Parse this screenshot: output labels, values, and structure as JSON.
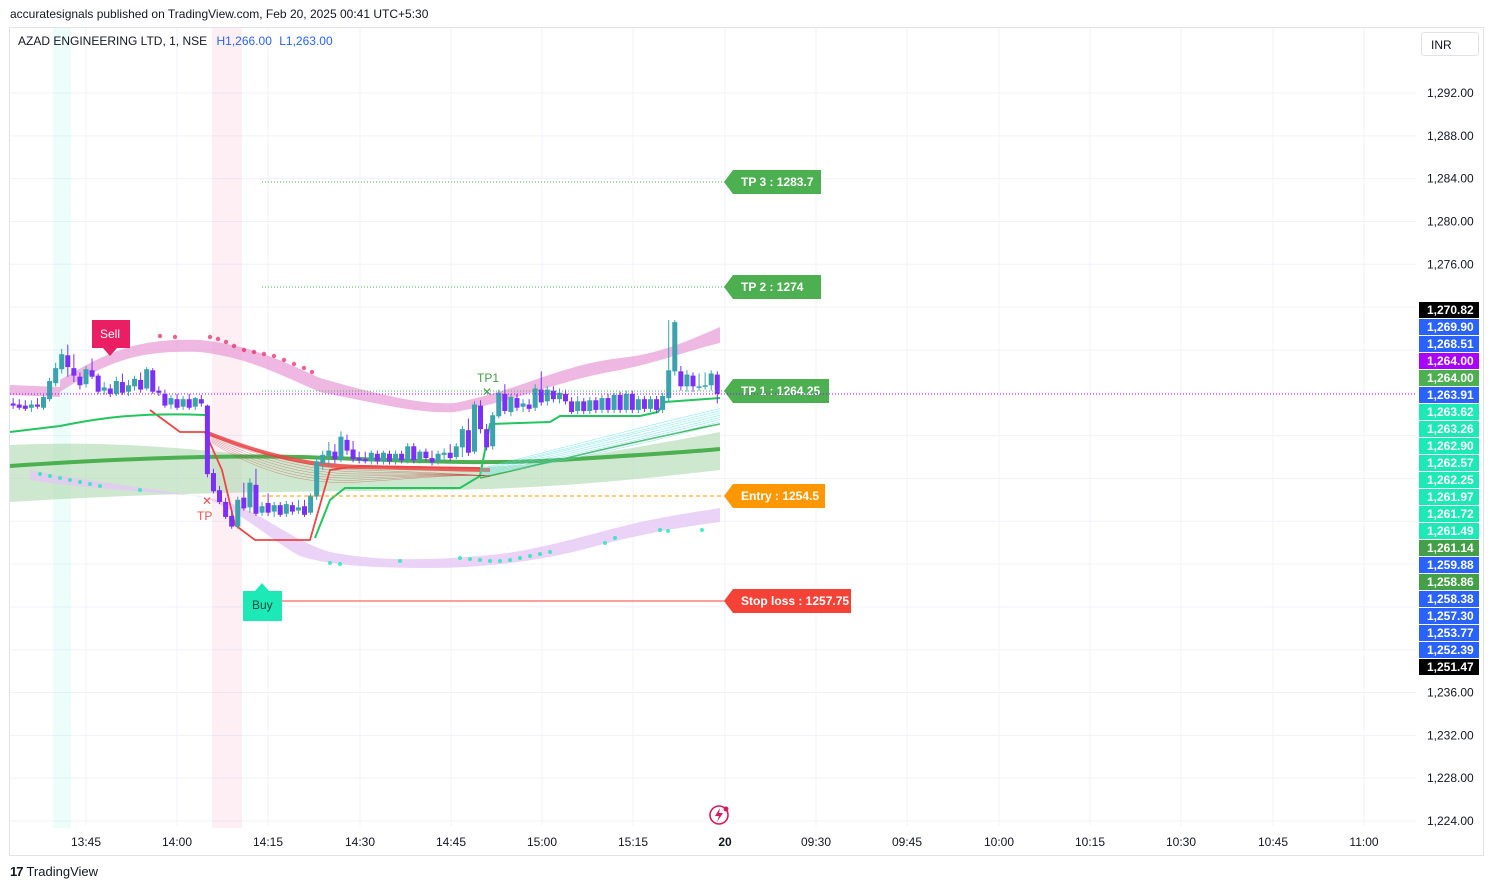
{
  "header": {
    "published_text": "accuratesignals published on TradingView.com, Feb 20, 2025 00:41 UTC+5:30"
  },
  "legend": {
    "symbol_text": "AZAD ENGINEERING LTD, 1, NSE",
    "high_text": "H1,266.00",
    "low_text": "L1,263.00"
  },
  "currency": "INR",
  "footer": {
    "brand": "TradingView"
  },
  "colors": {
    "up": "#26a69a",
    "up_highlight": "#3aa3ad",
    "down": "#7b2ff7",
    "green_line": "#22c55e",
    "red_line": "#ef4444",
    "pink_band": "#e8a0d8",
    "violet_band": "#e6c7f5",
    "green_cloud": "#a5d6a7",
    "tp_label": "#4caf50",
    "entry_label": "#ff9800",
    "stop_label": "#f44336",
    "buy_label": "#1de9b6",
    "sell_label": "#e91e63"
  },
  "chart_data": {
    "type": "candlestick",
    "title": "",
    "ylim": [
      1222,
      1296
    ],
    "y_ticks": [
      "1,292.00",
      "1,288.00",
      "1,284.00",
      "1,280.00",
      "1,276.00",
      "1,236.00",
      "1,232.00",
      "1,228.00",
      "1,224.00"
    ],
    "x_ticks": [
      "13:45",
      "14:00",
      "14:15",
      "14:30",
      "14:45",
      "15:00",
      "15:15",
      "20",
      "09:30",
      "09:45",
      "10:00",
      "10:15",
      "10:30",
      "10:45",
      "11:00"
    ],
    "levels": [
      {
        "name": "TP 3",
        "label": "TP 3 : 1283.7",
        "y": 1283.7
      },
      {
        "name": "TP 2",
        "label": "TP 2 : 1274",
        "y": 1274
      },
      {
        "name": "TP 1",
        "label": "TP 1 : 1264.25",
        "y": 1264.25
      },
      {
        "name": "Entry",
        "label": "Entry : 1254.5",
        "y": 1254.5
      },
      {
        "name": "Stop loss",
        "label": "Stop loss : 1257.75",
        "y": 1257.75
      }
    ],
    "signals": [
      {
        "label": "Sell",
        "x": "13:50"
      },
      {
        "label": "Buy",
        "x": "14:12"
      },
      {
        "label": "TP1",
        "x": "14:50"
      },
      {
        "label": "TP",
        "x": "14:05"
      }
    ],
    "price_scale_labels": [
      {
        "text": "1,270.82",
        "color": "#000000"
      },
      {
        "text": "1,269.90",
        "color": "#2962ff"
      },
      {
        "text": "1,268.51",
        "color": "#2962ff"
      },
      {
        "text": "1,264.00",
        "color": "#aa00ff"
      },
      {
        "text": "1,264.00",
        "color": "#4caf50"
      },
      {
        "text": "1,263.91",
        "color": "#2962ff"
      },
      {
        "text": "1,263.62",
        "color": "#1de9b6"
      },
      {
        "text": "1,263.26",
        "color": "#1de9b6"
      },
      {
        "text": "1,262.90",
        "color": "#1de9b6"
      },
      {
        "text": "1,262.57",
        "color": "#1de9b6"
      },
      {
        "text": "1,262.25",
        "color": "#1de9b6"
      },
      {
        "text": "1,261.97",
        "color": "#1de9b6"
      },
      {
        "text": "1,261.72",
        "color": "#1de9b6"
      },
      {
        "text": "1,261.49",
        "color": "#1de9b6"
      },
      {
        "text": "1,261.14",
        "color": "#43a047"
      },
      {
        "text": "1,259.88",
        "color": "#2962ff"
      },
      {
        "text": "1,258.86",
        "color": "#43a047"
      },
      {
        "text": "1,258.38",
        "color": "#2962ff"
      },
      {
        "text": "1,257.30",
        "color": "#2962ff"
      },
      {
        "text": "1,253.77",
        "color": "#2962ff"
      },
      {
        "text": "1,252.39",
        "color": "#2962ff"
      },
      {
        "text": "1,251.47",
        "color": "#000000"
      }
    ],
    "candles": [
      {
        "x": "13:33",
        "o": 1263.0,
        "h": 1263.5,
        "l": 1262.5,
        "c": 1262.8
      },
      {
        "x": "13:34",
        "o": 1262.9,
        "h": 1263.4,
        "l": 1262.4,
        "c": 1262.6
      },
      {
        "x": "13:35",
        "o": 1262.8,
        "h": 1263.3,
        "l": 1262.3,
        "c": 1262.5
      },
      {
        "x": "13:36",
        "o": 1262.6,
        "h": 1263.3,
        "l": 1262.2,
        "c": 1262.9
      },
      {
        "x": "13:37",
        "o": 1262.9,
        "h": 1263.5,
        "l": 1262.5,
        "c": 1262.7
      },
      {
        "x": "13:38",
        "o": 1262.6,
        "h": 1263.8,
        "l": 1262.4,
        "c": 1263.6
      },
      {
        "x": "13:39",
        "o": 1263.4,
        "h": 1265.4,
        "l": 1263.2,
        "c": 1265.1
      },
      {
        "x": "13:40",
        "o": 1264.9,
        "h": 1266.8,
        "l": 1264.6,
        "c": 1266.3
      },
      {
        "x": "13:41",
        "o": 1266.2,
        "h": 1268.1,
        "l": 1265.8,
        "c": 1267.6
      },
      {
        "x": "13:42",
        "o": 1267.5,
        "h": 1268.5,
        "l": 1265.5,
        "c": 1266.4
      },
      {
        "x": "13:43",
        "o": 1266.3,
        "h": 1267.6,
        "l": 1265.0,
        "c": 1265.6
      },
      {
        "x": "13:44",
        "o": 1265.5,
        "h": 1265.9,
        "l": 1264.3,
        "c": 1264.7
      },
      {
        "x": "13:45",
        "o": 1264.8,
        "h": 1266.5,
        "l": 1264.5,
        "c": 1266.2
      },
      {
        "x": "13:46",
        "o": 1266.1,
        "h": 1267.2,
        "l": 1265.3,
        "c": 1265.5
      },
      {
        "x": "13:47",
        "o": 1265.6,
        "h": 1265.8,
        "l": 1263.9,
        "c": 1264.1
      },
      {
        "x": "13:48",
        "o": 1264.2,
        "h": 1265.0,
        "l": 1263.8,
        "c": 1264.5
      },
      {
        "x": "13:49",
        "o": 1264.4,
        "h": 1264.8,
        "l": 1263.6,
        "c": 1263.9
      },
      {
        "x": "13:50",
        "o": 1263.9,
        "h": 1265.5,
        "l": 1263.7,
        "c": 1265.1
      },
      {
        "x": "13:51",
        "o": 1265.0,
        "h": 1265.8,
        "l": 1263.8,
        "c": 1264.0
      },
      {
        "x": "13:52",
        "o": 1264.1,
        "h": 1265.2,
        "l": 1263.7,
        "c": 1264.7
      },
      {
        "x": "13:53",
        "o": 1264.6,
        "h": 1265.6,
        "l": 1264.2,
        "c": 1265.3
      },
      {
        "x": "13:54",
        "o": 1265.2,
        "h": 1265.9,
        "l": 1264.0,
        "c": 1264.3
      },
      {
        "x": "13:55",
        "o": 1264.4,
        "h": 1266.4,
        "l": 1264.2,
        "c": 1266.2
      },
      {
        "x": "13:56",
        "o": 1266.1,
        "h": 1266.3,
        "l": 1263.9,
        "c": 1264.1
      },
      {
        "x": "13:57",
        "o": 1264.2,
        "h": 1264.6,
        "l": 1263.7,
        "c": 1264.0
      },
      {
        "x": "13:58",
        "o": 1263.9,
        "h": 1264.3,
        "l": 1262.6,
        "c": 1262.8
      },
      {
        "x": "13:59",
        "o": 1262.9,
        "h": 1263.8,
        "l": 1262.5,
        "c": 1263.5
      },
      {
        "x": "14:00",
        "o": 1263.4,
        "h": 1263.9,
        "l": 1262.4,
        "c": 1262.6
      },
      {
        "x": "14:01",
        "o": 1262.7,
        "h": 1263.7,
        "l": 1262.4,
        "c": 1263.4
      },
      {
        "x": "14:02",
        "o": 1263.4,
        "h": 1263.9,
        "l": 1262.4,
        "c": 1262.6
      },
      {
        "x": "14:03",
        "o": 1262.7,
        "h": 1263.6,
        "l": 1262.4,
        "c": 1263.5
      },
      {
        "x": "14:04",
        "o": 1263.4,
        "h": 1263.8,
        "l": 1262.7,
        "c": 1263.0
      },
      {
        "x": "14:05",
        "o": 1262.8,
        "h": 1262.9,
        "l": 1256.1,
        "c": 1256.4
      },
      {
        "x": "14:06",
        "o": 1256.5,
        "h": 1256.9,
        "l": 1254.6,
        "c": 1254.8
      },
      {
        "x": "14:07",
        "o": 1254.9,
        "h": 1255.3,
        "l": 1253.6,
        "c": 1253.8
      },
      {
        "x": "14:08",
        "o": 1253.8,
        "h": 1254.2,
        "l": 1252.2,
        "c": 1252.4
      },
      {
        "x": "14:09",
        "o": 1252.5,
        "h": 1253.0,
        "l": 1251.3,
        "c": 1251.5
      },
      {
        "x": "14:10",
        "o": 1251.5,
        "h": 1254.3,
        "l": 1251.3,
        "c": 1254.0
      },
      {
        "x": "14:11",
        "o": 1254.2,
        "h": 1255.6,
        "l": 1253.0,
        "c": 1253.2
      },
      {
        "x": "14:12",
        "o": 1253.3,
        "h": 1256.0,
        "l": 1252.8,
        "c": 1255.6
      },
      {
        "x": "14:13",
        "o": 1255.4,
        "h": 1256.9,
        "l": 1252.5,
        "c": 1252.7
      },
      {
        "x": "14:14",
        "o": 1252.8,
        "h": 1253.8,
        "l": 1252.5,
        "c": 1253.4
      },
      {
        "x": "14:15",
        "o": 1253.7,
        "h": 1254.6,
        "l": 1252.5,
        "c": 1252.8
      },
      {
        "x": "14:16",
        "o": 1252.9,
        "h": 1253.8,
        "l": 1252.4,
        "c": 1253.5
      },
      {
        "x": "14:17",
        "o": 1253.5,
        "h": 1253.8,
        "l": 1252.4,
        "c": 1252.6
      },
      {
        "x": "14:18",
        "o": 1252.7,
        "h": 1253.9,
        "l": 1252.4,
        "c": 1253.6
      },
      {
        "x": "14:19",
        "o": 1253.5,
        "h": 1253.8,
        "l": 1252.6,
        "c": 1252.9
      },
      {
        "x": "14:20",
        "o": 1253.0,
        "h": 1254.0,
        "l": 1252.7,
        "c": 1253.3
      },
      {
        "x": "14:21",
        "o": 1253.4,
        "h": 1254.0,
        "l": 1252.4,
        "c": 1252.6
      },
      {
        "x": "14:22",
        "o": 1252.8,
        "h": 1254.6,
        "l": 1252.6,
        "c": 1254.4
      },
      {
        "x": "14:23",
        "o": 1254.3,
        "h": 1257.9,
        "l": 1254.0,
        "c": 1257.6
      },
      {
        "x": "14:24",
        "o": 1257.4,
        "h": 1258.6,
        "l": 1256.8,
        "c": 1258.2
      },
      {
        "x": "14:25",
        "o": 1258.1,
        "h": 1259.4,
        "l": 1257.2,
        "c": 1258.6
      },
      {
        "x": "14:26",
        "o": 1258.5,
        "h": 1259.2,
        "l": 1257.4,
        "c": 1257.8
      },
      {
        "x": "14:27",
        "o": 1257.8,
        "h": 1260.4,
        "l": 1257.5,
        "c": 1259.9
      },
      {
        "x": "14:28",
        "o": 1259.6,
        "h": 1260.1,
        "l": 1258.2,
        "c": 1258.6
      },
      {
        "x": "14:29",
        "o": 1258.7,
        "h": 1259.5,
        "l": 1257.5,
        "c": 1257.8
      },
      {
        "x": "14:30",
        "o": 1257.9,
        "h": 1258.5,
        "l": 1257.4,
        "c": 1257.7
      },
      {
        "x": "14:31",
        "o": 1257.8,
        "h": 1258.5,
        "l": 1257.4,
        "c": 1257.6
      },
      {
        "x": "14:32",
        "o": 1257.7,
        "h": 1258.6,
        "l": 1257.3,
        "c": 1258.4
      },
      {
        "x": "14:33",
        "o": 1258.3,
        "h": 1258.6,
        "l": 1257.3,
        "c": 1257.6
      },
      {
        "x": "14:34",
        "o": 1257.6,
        "h": 1258.6,
        "l": 1257.3,
        "c": 1258.4
      },
      {
        "x": "14:35",
        "o": 1258.3,
        "h": 1258.6,
        "l": 1257.3,
        "c": 1257.6
      },
      {
        "x": "14:36",
        "o": 1257.7,
        "h": 1258.6,
        "l": 1257.3,
        "c": 1258.3
      },
      {
        "x": "14:37",
        "o": 1258.3,
        "h": 1258.6,
        "l": 1257.4,
        "c": 1257.7
      },
      {
        "x": "14:38",
        "o": 1257.7,
        "h": 1259.3,
        "l": 1257.4,
        "c": 1259.0
      },
      {
        "x": "14:39",
        "o": 1259.0,
        "h": 1259.3,
        "l": 1257.4,
        "c": 1257.7
      },
      {
        "x": "14:40",
        "o": 1257.8,
        "h": 1258.7,
        "l": 1257.4,
        "c": 1258.5
      },
      {
        "x": "14:41",
        "o": 1258.5,
        "h": 1258.8,
        "l": 1257.6,
        "c": 1257.9
      },
      {
        "x": "14:42",
        "o": 1257.9,
        "h": 1258.6,
        "l": 1257.2,
        "c": 1257.5
      },
      {
        "x": "14:43",
        "o": 1257.6,
        "h": 1258.6,
        "l": 1257.3,
        "c": 1258.3
      },
      {
        "x": "14:44",
        "o": 1258.2,
        "h": 1258.8,
        "l": 1257.6,
        "c": 1258.4
      },
      {
        "x": "14:45",
        "o": 1258.4,
        "h": 1259.2,
        "l": 1257.6,
        "c": 1257.9
      },
      {
        "x": "14:46",
        "o": 1258.0,
        "h": 1259.3,
        "l": 1257.8,
        "c": 1259.0
      },
      {
        "x": "14:47",
        "o": 1258.9,
        "h": 1260.9,
        "l": 1258.0,
        "c": 1260.6
      },
      {
        "x": "14:48",
        "o": 1260.5,
        "h": 1261.6,
        "l": 1258.1,
        "c": 1258.4
      },
      {
        "x": "14:49",
        "o": 1258.5,
        "h": 1263.2,
        "l": 1258.3,
        "c": 1262.9
      },
      {
        "x": "14:50",
        "o": 1262.8,
        "h": 1263.3,
        "l": 1260.2,
        "c": 1260.6
      },
      {
        "x": "14:51",
        "o": 1260.6,
        "h": 1261.1,
        "l": 1258.6,
        "c": 1258.9
      },
      {
        "x": "14:52",
        "o": 1259.0,
        "h": 1262.2,
        "l": 1258.7,
        "c": 1261.9
      },
      {
        "x": "14:53",
        "o": 1261.8,
        "h": 1264.3,
        "l": 1261.6,
        "c": 1264.0
      },
      {
        "x": "14:54",
        "o": 1263.9,
        "h": 1264.8,
        "l": 1262.0,
        "c": 1262.3
      },
      {
        "x": "14:55",
        "o": 1262.2,
        "h": 1263.9,
        "l": 1261.8,
        "c": 1263.6
      },
      {
        "x": "14:56",
        "o": 1263.5,
        "h": 1263.9,
        "l": 1262.3,
        "c": 1262.6
      },
      {
        "x": "14:57",
        "o": 1262.7,
        "h": 1263.4,
        "l": 1262.2,
        "c": 1263.0
      },
      {
        "x": "14:58",
        "o": 1262.9,
        "h": 1263.4,
        "l": 1262.2,
        "c": 1262.5
      },
      {
        "x": "14:59",
        "o": 1262.6,
        "h": 1264.8,
        "l": 1262.3,
        "c": 1264.4
      },
      {
        "x": "15:00",
        "o": 1264.3,
        "h": 1266.0,
        "l": 1262.8,
        "c": 1263.1
      },
      {
        "x": "15:01",
        "o": 1263.2,
        "h": 1264.6,
        "l": 1262.8,
        "c": 1264.3
      },
      {
        "x": "15:02",
        "o": 1264.2,
        "h": 1264.6,
        "l": 1263.1,
        "c": 1263.4
      },
      {
        "x": "15:03",
        "o": 1263.4,
        "h": 1264.4,
        "l": 1263.0,
        "c": 1264.0
      },
      {
        "x": "15:04",
        "o": 1263.9,
        "h": 1264.3,
        "l": 1262.9,
        "c": 1263.2
      },
      {
        "x": "15:05",
        "o": 1263.2,
        "h": 1263.6,
        "l": 1262.0,
        "c": 1262.2
      },
      {
        "x": "15:06",
        "o": 1262.3,
        "h": 1263.7,
        "l": 1262.0,
        "c": 1263.2
      },
      {
        "x": "15:07",
        "o": 1263.2,
        "h": 1263.5,
        "l": 1262.0,
        "c": 1262.3
      },
      {
        "x": "15:08",
        "o": 1262.3,
        "h": 1263.6,
        "l": 1262.0,
        "c": 1263.3
      },
      {
        "x": "15:09",
        "o": 1263.3,
        "h": 1263.6,
        "l": 1262.1,
        "c": 1262.4
      },
      {
        "x": "15:10",
        "o": 1262.4,
        "h": 1263.8,
        "l": 1262.1,
        "c": 1263.5
      },
      {
        "x": "15:11",
        "o": 1263.5,
        "h": 1263.9,
        "l": 1262.1,
        "c": 1262.4
      },
      {
        "x": "15:12",
        "o": 1262.4,
        "h": 1264.0,
        "l": 1262.1,
        "c": 1263.8
      },
      {
        "x": "15:13",
        "o": 1263.8,
        "h": 1264.1,
        "l": 1262.1,
        "c": 1262.4
      },
      {
        "x": "15:14",
        "o": 1262.4,
        "h": 1264.2,
        "l": 1262.1,
        "c": 1263.9
      },
      {
        "x": "15:15",
        "o": 1263.9,
        "h": 1264.2,
        "l": 1262.1,
        "c": 1262.4
      },
      {
        "x": "15:16",
        "o": 1262.4,
        "h": 1263.7,
        "l": 1262.1,
        "c": 1263.4
      },
      {
        "x": "15:17",
        "o": 1263.4,
        "h": 1263.7,
        "l": 1262.2,
        "c": 1262.5
      },
      {
        "x": "15:18",
        "o": 1262.5,
        "h": 1263.7,
        "l": 1262.2,
        "c": 1263.4
      },
      {
        "x": "15:19",
        "o": 1263.4,
        "h": 1263.7,
        "l": 1262.1,
        "c": 1262.4
      },
      {
        "x": "15:20",
        "o": 1262.4,
        "h": 1264.0,
        "l": 1262.1,
        "c": 1263.7
      },
      {
        "x": "15:21",
        "o": 1263.5,
        "h": 1270.8,
        "l": 1263.2,
        "c": 1266.1
      },
      {
        "x": "15:22",
        "o": 1266.0,
        "h": 1270.8,
        "l": 1265.6,
        "c": 1270.6
      },
      {
        "x": "15:23",
        "o": 1266.0,
        "h": 1266.5,
        "l": 1264.2,
        "c": 1264.6
      },
      {
        "x": "15:24",
        "o": 1264.6,
        "h": 1266.1,
        "l": 1264.1,
        "c": 1265.7
      },
      {
        "x": "15:25",
        "o": 1265.6,
        "h": 1265.9,
        "l": 1264.1,
        "c": 1264.6
      },
      {
        "x": "15:26",
        "o": 1264.6,
        "h": 1265.8,
        "l": 1264.2,
        "c": 1264.6
      },
      {
        "x": "15:27",
        "o": 1264.6,
        "h": 1265.9,
        "l": 1264.3,
        "c": 1264.7
      },
      {
        "x": "15:28",
        "o": 1264.7,
        "h": 1266.1,
        "l": 1264.2,
        "c": 1265.8
      },
      {
        "x": "15:29",
        "o": 1265.7,
        "h": 1266.0,
        "l": 1263.0,
        "c": 1263.9
      }
    ]
  }
}
